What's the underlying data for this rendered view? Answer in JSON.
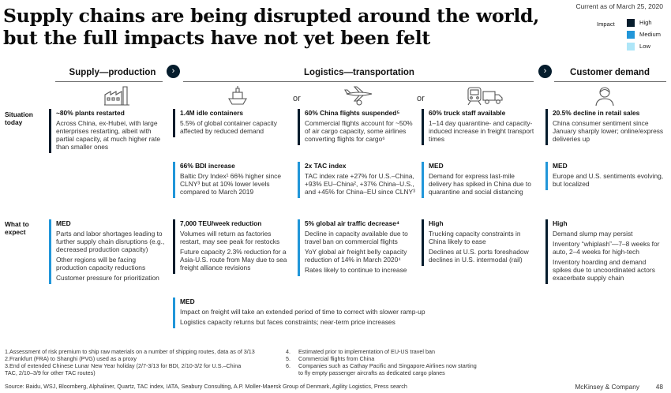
{
  "title": "Supply chains are being disrupted around the world, but the full impacts have not yet been felt",
  "current_as_of": "Current as of March 25, 2020",
  "legend": {
    "title": "Impact",
    "items": [
      {
        "label": "High",
        "color": "#051c2c"
      },
      {
        "label": "Medium",
        "color": "#2196d9"
      },
      {
        "label": "Low",
        "color": "#aee6f8"
      }
    ]
  },
  "headers": {
    "supply": "Supply—production",
    "logistics": "Logistics—transportation",
    "customer": "Customer demand"
  },
  "row_labels": {
    "situation": "Situation today",
    "expect": "What to expect"
  },
  "or_text": "or",
  "situation": {
    "supply": {
      "heading": "~80% plants restarted",
      "body": "Across China, ex-Hubei, with large enterprises restarting, albeit with partial capacity, at much higher rate than smaller ones"
    },
    "containers": {
      "heading": "1.4M idle containers",
      "body": "5.5% of global container capacity affected by reduced demand"
    },
    "flights": {
      "heading": "60% China flights suspended⁵",
      "body": "Commercial flights account for ~50% of air cargo capacity, some airlines converting flights for cargo⁶"
    },
    "trucks": {
      "heading": "60% truck staff available",
      "body": "1–14 day quarantine- and capacity-induced increase in freight transport times"
    },
    "customer": {
      "heading": "20.5% decline in retail sales",
      "body": "China consumer sentiment since January sharply lower; online/express deliveries up"
    }
  },
  "situation2": {
    "containers": {
      "heading": "66% BDI increase",
      "body": "Baltic Dry Index¹ 66% higher since CLNY³ but at 10% lower levels compared to March 2019"
    },
    "flights": {
      "heading": "2x TAC index",
      "body": "TAC index rate +27% for U.S.–China, +93% EU–China², +37% China–U.S., and +45% for China–EU since CLNY³"
    },
    "trucks": {
      "heading": "MED",
      "body": "Demand for express last-mile delivery has spiked in China due to quarantine and social distancing"
    },
    "customer": {
      "heading": "MED",
      "body": "Europe and U.S. sentiments evolving, but localized"
    }
  },
  "expect": {
    "supply": {
      "heading": "MED",
      "items": [
        "Parts and labor shortages leading to further supply chain disruptions (e.g., decreased production capacity)",
        "Other regions will be facing production capacity reductions",
        "Customer pressure for prioritization"
      ]
    },
    "containers": {
      "heading": "7,000 TEU/week reduction",
      "items": [
        "Volumes will return as factories restart, may see peak for restocks",
        "Future capacity 2.3% reduction for a Asia-U.S. route from May due to sea freight alliance revisions"
      ]
    },
    "flights": {
      "heading": "5% global air traffic decrease⁴",
      "items": [
        "Decline in capacity available due to travel ban on commercial flights",
        "YoY global air freight belly capacity reduction of 14% in March 2020⁴",
        "Rates likely to continue to increase"
      ]
    },
    "trucks": {
      "heading": "High",
      "items": [
        "Trucking capacity constraints in China likely to ease",
        "Declines at U.S. ports foreshadow declines in U.S. intermodal (rail)"
      ]
    },
    "customer": {
      "heading": "High",
      "items": [
        "Demand slump may persist",
        "Inventory “whiplash”—7–8 weeks for auto, 2–4 weeks for high-tech",
        "Inventory hoarding and demand spikes due to uncoordinated actors exacerbate supply chain"
      ]
    }
  },
  "logistics_wide": {
    "heading": "MED",
    "items": [
      "Impact on freight will take an extended period of time to correct with slower ramp-up",
      "Logistics capacity returns but faces constraints; near-term price increases"
    ]
  },
  "footnotes_left": [
    "1.Assessment of risk premium to ship raw materials on a number of shipping routes, data as of 3/13",
    "2.Frankfurt  (FRA) to Shanghi (PVG) used as a proxy",
    "3.End of extended Chinese Lunar New Year holiday (2/7-3/13 for BDI, 2/10-3/2 for U.S.–China",
    "TAC, 2/10–3/9 for other TAC routes)"
  ],
  "footnotes_right": [
    {
      "num": "4.",
      "text": "Estimated prior to implementation of EU-US travel ban"
    },
    {
      "num": "5.",
      "text": "Commercial flights from China"
    },
    {
      "num": "6.",
      "text": "Companies such as Cathay Pacific and Singapore Airlines now starting"
    },
    {
      "num": "",
      "text": "to fly empty passenger aircrafts as dedicated cargo planes"
    }
  ],
  "source": "Source: Baidu, WSJ, Bloomberg, Alphaliner, Quartz, TAC index, IATA, Seabury Consulting, A.P. Moller-Maersk Group of Denmark, Agility Logistics, Press search",
  "brand": "McKinsey & Company",
  "page_number": "48",
  "icons": [
    "factory-icon",
    "ship-icon",
    "airplane-icon",
    "train-icon",
    "truck-icon",
    "person-icon",
    "chevron-right-icon"
  ]
}
